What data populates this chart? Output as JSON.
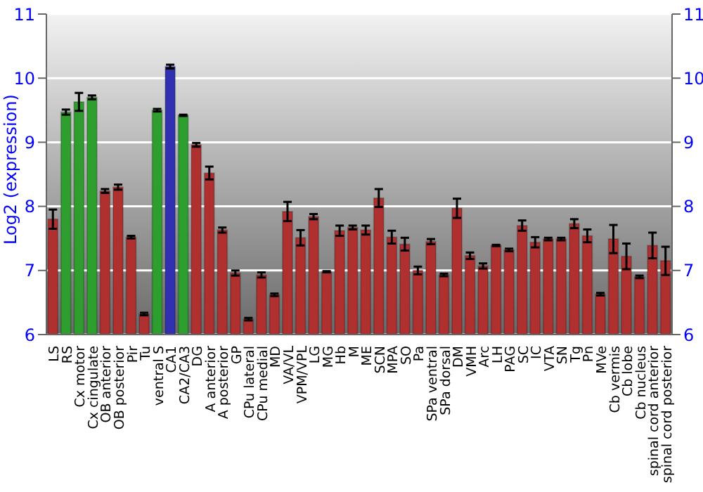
{
  "chart_data": {
    "type": "bar",
    "ylabel": "Log2 (expression)",
    "categories": [
      "LS",
      "RS",
      "Cx motor",
      "Cx cingulate",
      "OB anterior",
      "OB posterior",
      "Pir",
      "Tu",
      "ventral S",
      "CA1",
      "CA2/CA3",
      "DG",
      "A anterior",
      "A posterior",
      "GP",
      "CPu lateral",
      "CPu medial",
      "MD",
      "VA/VL",
      "VPM/VPL",
      "LG",
      "MG",
      "Hb",
      "M",
      "ME",
      "SCN",
      "MPA",
      "SO",
      "Pa",
      "SPa ventral",
      "SPa dorsal",
      "DM",
      "VMH",
      "Arc",
      "LH",
      "PAG",
      "SC",
      "IC",
      "VTA",
      "SN",
      "Tg",
      "Pn",
      "MVe",
      "Cb vermis",
      "Cb lobe",
      "Cb nucleus",
      "spinal cord anterior",
      "spinal cord posterior"
    ],
    "values": [
      7.8,
      9.47,
      9.63,
      9.7,
      8.24,
      8.3,
      7.52,
      6.32,
      9.5,
      10.18,
      9.42,
      8.96,
      8.52,
      7.63,
      6.96,
      6.24,
      6.93,
      6.62,
      7.92,
      7.51,
      7.84,
      6.98,
      7.62,
      7.67,
      7.63,
      8.13,
      7.52,
      7.41,
      7.0,
      7.45,
      6.93,
      7.97,
      7.23,
      7.07,
      7.39,
      7.32,
      7.7,
      7.44,
      7.49,
      7.49,
      7.73,
      7.54,
      6.63,
      7.49,
      7.22,
      6.9,
      7.39,
      7.15
    ],
    "errors": [
      0.15,
      0.04,
      0.14,
      0.03,
      0.03,
      0.04,
      0.02,
      0.02,
      0.02,
      0.03,
      0.01,
      0.03,
      0.1,
      0.04,
      0.04,
      0.02,
      0.04,
      0.02,
      0.15,
      0.12,
      0.04,
      0.01,
      0.08,
      0.03,
      0.07,
      0.14,
      0.1,
      0.1,
      0.06,
      0.04,
      0.02,
      0.15,
      0.05,
      0.04,
      0.01,
      0.02,
      0.08,
      0.08,
      0.02,
      0.02,
      0.07,
      0.1,
      0.02,
      0.22,
      0.2,
      0.02,
      0.2,
      0.22
    ],
    "colors": [
      "#b03030",
      "#2e9e2e",
      "#2e9e2e",
      "#2e9e2e",
      "#b03030",
      "#b03030",
      "#b03030",
      "#b03030",
      "#2e9e2e",
      "#3030b0",
      "#2e9e2e",
      "#b03030",
      "#b03030",
      "#b03030",
      "#b03030",
      "#b03030",
      "#b03030",
      "#b03030",
      "#b03030",
      "#b03030",
      "#b03030",
      "#b03030",
      "#b03030",
      "#b03030",
      "#b03030",
      "#b03030",
      "#b03030",
      "#b03030",
      "#b03030",
      "#b03030",
      "#b03030",
      "#b03030",
      "#b03030",
      "#b03030",
      "#b03030",
      "#b03030",
      "#b03030",
      "#b03030",
      "#b03030",
      "#b03030",
      "#b03030",
      "#b03030",
      "#b03030",
      "#b03030",
      "#b03030",
      "#b03030",
      "#b03030",
      "#b03030"
    ],
    "ylim": [
      6,
      11
    ],
    "yticks": [
      6,
      7,
      8,
      9,
      10,
      11
    ],
    "y2lim": [
      6,
      11
    ],
    "y2ticks": [
      6,
      7,
      8,
      9,
      10,
      11
    ],
    "grid": "y"
  }
}
